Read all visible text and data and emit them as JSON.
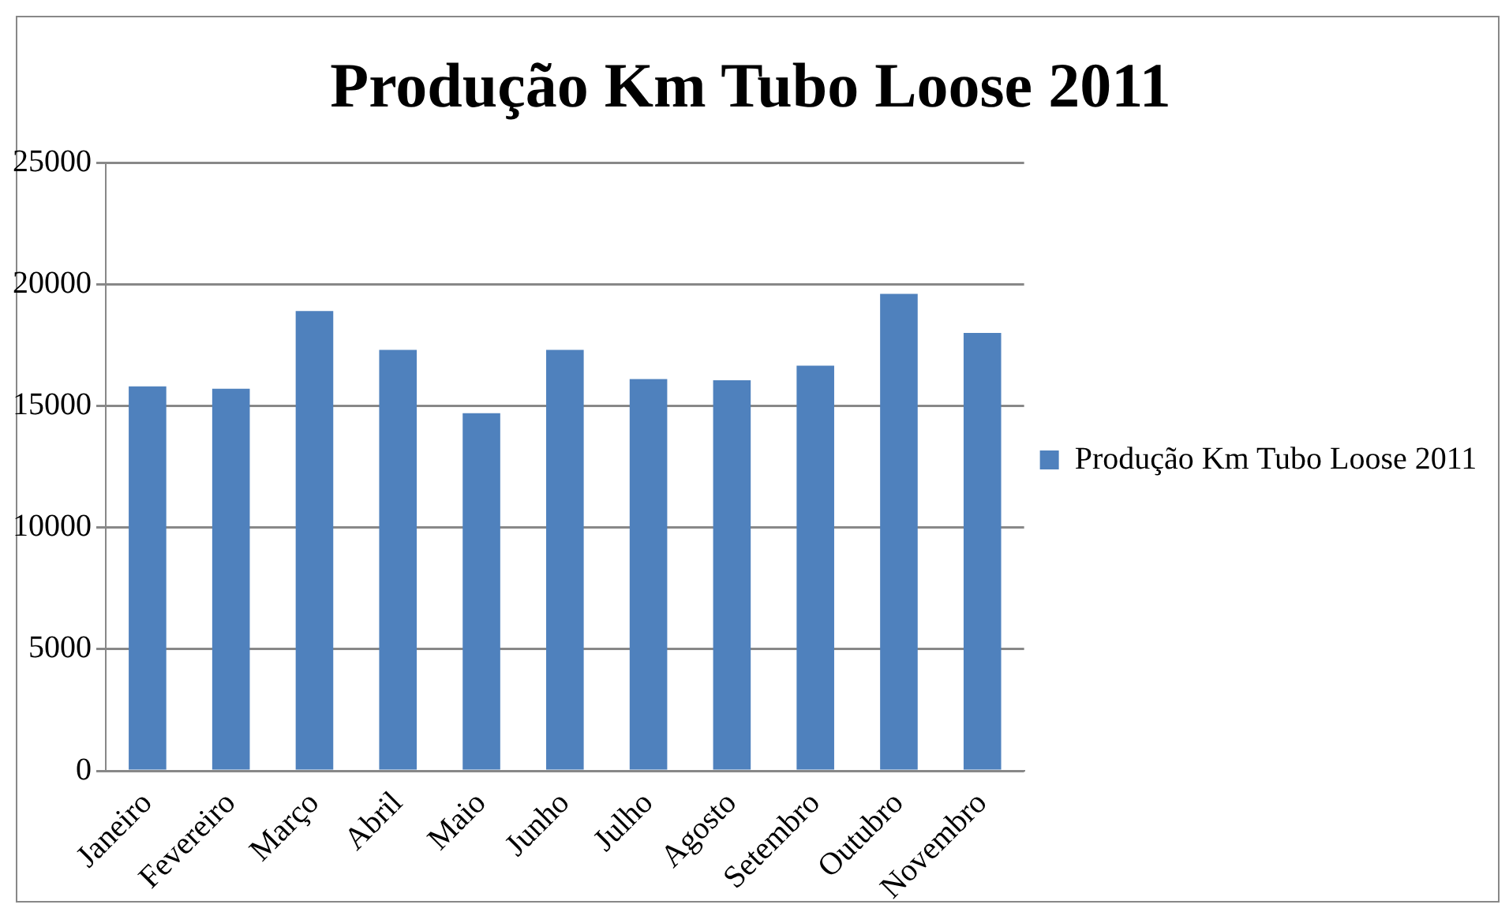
{
  "chart_data": {
    "type": "bar",
    "title": "Produção Km Tubo Loose 2011",
    "categories": [
      "Janeiro",
      "Fevereiro",
      "Março",
      "Abril",
      "Maio",
      "Junho",
      "Julho",
      "Agosto",
      "Setembro",
      "Outubro",
      "Novembro"
    ],
    "series": [
      {
        "name": "Produção Km Tubo Loose 2011",
        "color": "#4f81bd",
        "values": [
          15800,
          15700,
          18900,
          17300,
          14700,
          17300,
          16100,
          16050,
          16650,
          19600,
          18000
        ]
      }
    ],
    "ylim": [
      0,
      25000
    ],
    "yticks": [
      0,
      5000,
      10000,
      15000,
      20000,
      25000
    ],
    "grid": "y",
    "legend": "right"
  }
}
